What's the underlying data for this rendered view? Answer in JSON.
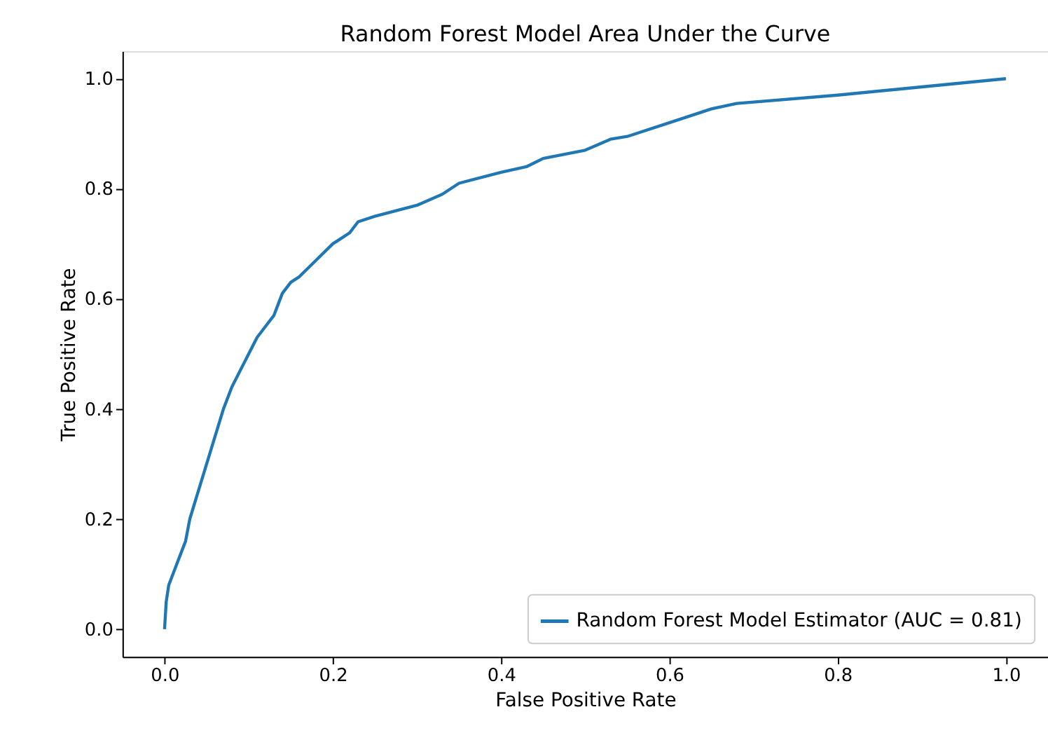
{
  "chart_data": {
    "type": "line",
    "title": "Random Forest Model Area Under the Curve",
    "xlabel": "False Positive Rate",
    "ylabel": "True Positive Rate",
    "x": [
      0,
      0.002,
      0.005,
      0.01,
      0.02,
      0.025,
      0.03,
      0.04,
      0.05,
      0.06,
      0.07,
      0.08,
      0.09,
      0.1,
      0.11,
      0.12,
      0.13,
      0.14,
      0.15,
      0.16,
      0.18,
      0.2,
      0.21,
      0.22,
      0.23,
      0.25,
      0.3,
      0.33,
      0.35,
      0.4,
      0.43,
      0.45,
      0.5,
      0.53,
      0.55,
      0.6,
      0.65,
      0.68,
      0.8,
      0.9,
      1
    ],
    "series": [
      {
        "name": "Random Forest Model Estimator (AUC = 0.81)",
        "color": "#1f77b4",
        "values": [
          0,
          0.05,
          0.08,
          0.1,
          0.14,
          0.16,
          0.2,
          0.25,
          0.3,
          0.35,
          0.4,
          0.44,
          0.47,
          0.5,
          0.53,
          0.55,
          0.57,
          0.61,
          0.63,
          0.64,
          0.67,
          0.7,
          0.71,
          0.72,
          0.74,
          0.75,
          0.77,
          0.79,
          0.81,
          0.83,
          0.84,
          0.855,
          0.87,
          0.89,
          0.895,
          0.92,
          0.945,
          0.955,
          0.97,
          0.985,
          1
        ]
      }
    ],
    "xlim": [
      -0.05,
      1.05
    ],
    "ylim": [
      -0.05,
      1.05
    ],
    "xticks": [
      {
        "value": 0,
        "label": "0.0"
      },
      0.2,
      0.4,
      0.6,
      0.8,
      {
        "value": 1,
        "label": "1.0"
      }
    ],
    "yticks": [
      {
        "value": 0,
        "label": "0.0"
      },
      0.2,
      0.4,
      0.6,
      0.8,
      {
        "value": 1,
        "label": "1.0"
      }
    ],
    "grid": false,
    "legend": "bottom right",
    "marker": "none",
    "line_style": "solid"
  }
}
